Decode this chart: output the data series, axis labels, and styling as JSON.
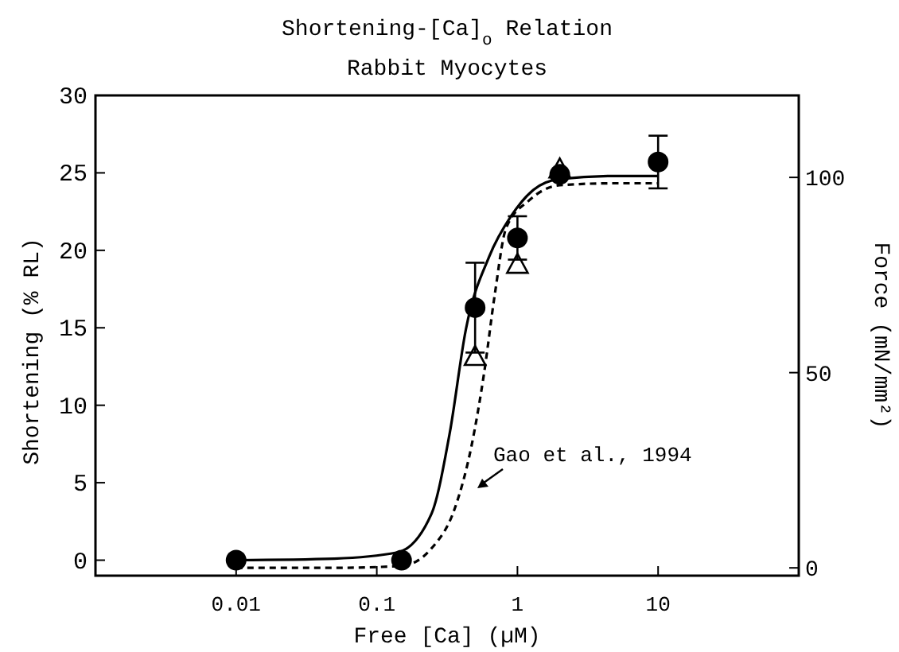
{
  "chart_data": {
    "type": "scatter",
    "title": "Shortening-[Ca]$_{o}$ Relation",
    "subtitle": "Rabbit Myocytes",
    "xlabel": "Free [Ca] (µM)",
    "ylabel": "Shortening (% RL)",
    "y2label": "Force (mN/mm²)",
    "log": "x",
    "xlim": [
      0.001,
      100
    ],
    "xticks": [
      0.01,
      0.1,
      1,
      10
    ],
    "ylim": [
      -1,
      30
    ],
    "yticks": [
      0,
      5,
      10,
      15,
      20,
      25,
      30
    ],
    "y2lim": [
      -2,
      121
    ],
    "y2ticks": [
      0,
      50,
      100
    ],
    "grid": false,
    "annotations": [
      "Gao et al., 1994"
    ],
    "series": [
      {
        "type": "line",
        "color": "#000000",
        "line_style": "solid",
        "x": [
          0.01,
          0.05,
          0.14,
          0.245,
          0.33,
          0.43,
          0.63,
          0.9,
          1.3,
          2,
          5,
          10
        ],
        "values": [
          0,
          0.1,
          0.5,
          3.0,
          8.2,
          14.9,
          19.6,
          22.2,
          23.9,
          24.6,
          24.8,
          24.8
        ]
      },
      {
        "type": "line",
        "axis": "y2",
        "color": "#000000",
        "line_style": "dashed",
        "x": [
          0.01,
          0.05,
          0.15,
          0.245,
          0.36,
          0.47,
          0.58,
          0.69,
          0.83,
          1.2,
          2,
          5,
          10
        ],
        "values": [
          0,
          0,
          0.5,
          5,
          15.4,
          31,
          50,
          70,
          87,
          94,
          98,
          98.5,
          98.5
        ]
      },
      {
        "color": "#000000",
        "marker": "circle",
        "x": [
          0.01,
          0.15,
          0.5,
          1,
          2,
          10
        ],
        "values": [
          0,
          0,
          16.3,
          20.8,
          24.9,
          25.7
        ],
        "errors": [
          null,
          null,
          2.9,
          1.4,
          null,
          1.7
        ]
      },
      {
        "axis": "y2",
        "color": "#000000",
        "marker": "triangle",
        "x": [
          0.5,
          1,
          2
        ],
        "values": [
          54,
          77.6,
          102
        ]
      }
    ]
  }
}
